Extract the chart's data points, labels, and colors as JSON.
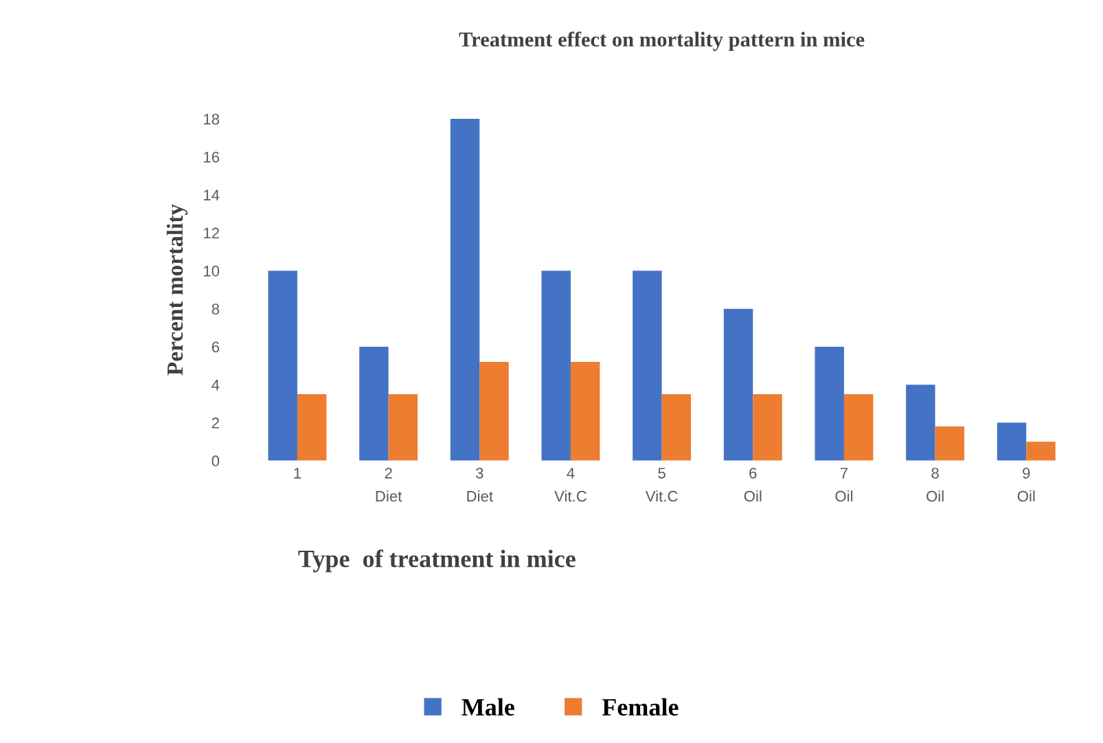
{
  "chart_data": {
    "type": "bar",
    "title": "Treatment effect on mortality pattern in mice",
    "xlabel": "Type  of treatment in mice",
    "ylabel": "Percent mortality",
    "categories": [
      "1",
      "2\nDiet",
      "3\nDiet",
      "4\nVit.C",
      "5\nVit.C",
      "6\nOil",
      "7\nOil",
      "8\nOil",
      "9\nOil"
    ],
    "series": [
      {
        "name": "Male",
        "color": "#4472c4",
        "values": [
          10,
          6,
          18,
          10,
          10,
          8,
          6,
          4,
          2
        ]
      },
      {
        "name": "Female",
        "color": "#ed7d31",
        "values": [
          3.5,
          3.5,
          5.2,
          5.2,
          3.5,
          3.5,
          3.5,
          1.8,
          1
        ]
      }
    ],
    "ylim": [
      0,
      18
    ],
    "yticks": [
      0,
      2,
      4,
      6,
      8,
      10,
      12,
      14,
      16,
      18
    ],
    "grid": false,
    "legend": "bottom"
  }
}
